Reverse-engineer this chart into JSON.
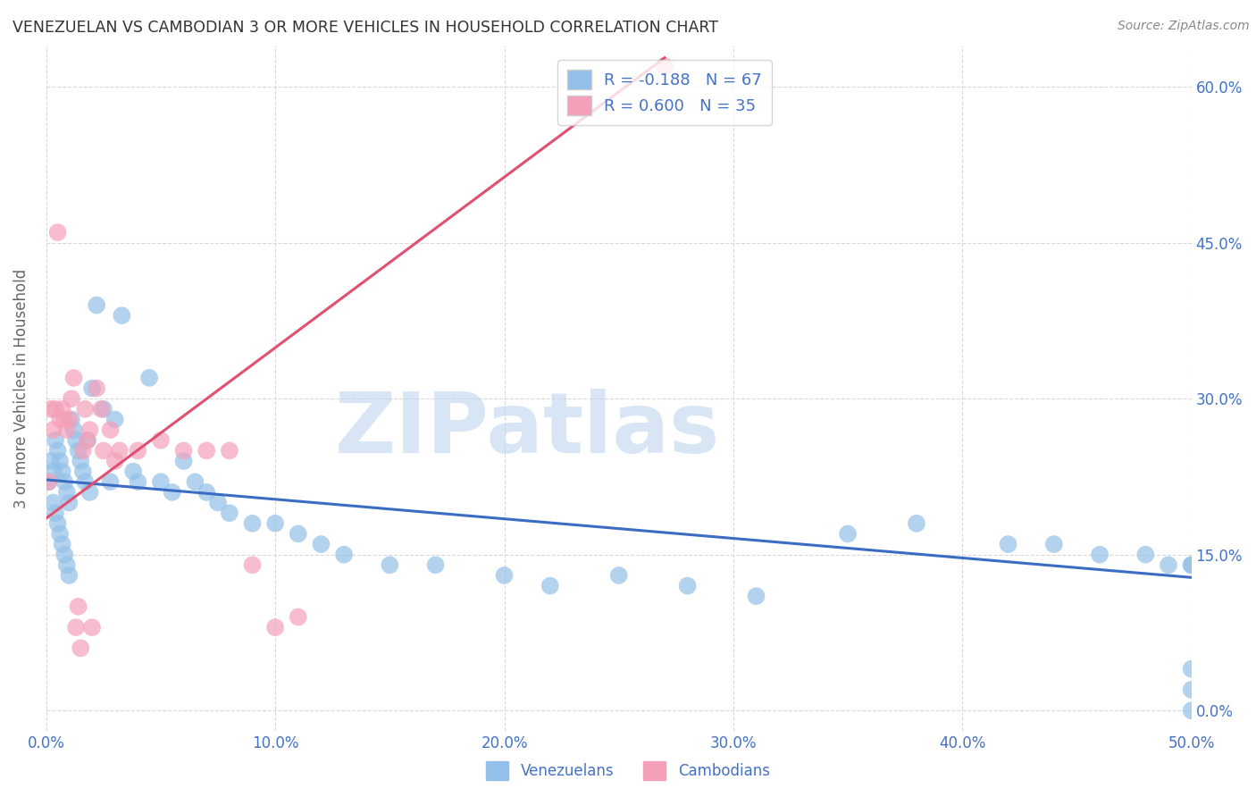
{
  "title": "VENEZUELAN VS CAMBODIAN 3 OR MORE VEHICLES IN HOUSEHOLD CORRELATION CHART",
  "source": "Source: ZipAtlas.com",
  "xmin": 0.0,
  "xmax": 0.5,
  "ymin": -0.02,
  "ymax": 0.64,
  "venezuelan_color": "#92C0E8",
  "cambodian_color": "#F4A0B8",
  "trendline_venezuelan_color": "#3B6CC4",
  "trendline_cambodian_color": "#E05070",
  "ylabel": "3 or more Vehicles in Household",
  "bottom_legend_venezuelan": "Venezuelans",
  "bottom_legend_cambodian": "Cambodians",
  "legend_ven_text": "R = -0.188   N = 67",
  "legend_cam_text": "R = 0.600   N = 35",
  "watermark": "ZIPatlas",
  "grid_color": "#D8D8D8",
  "background_color": "#FFFFFF",
  "title_color": "#333333",
  "axis_label_color": "#4472C4",
  "source_color": "#888888",
  "ven_trendline_x0": 0.0,
  "ven_trendline_x1": 0.5,
  "ven_trendline_y0": 0.222,
  "ven_trendline_y1": 0.128,
  "cam_trendline_x0": 0.0,
  "cam_trendline_x1": 0.27,
  "cam_trendline_y0": 0.185,
  "cam_trendline_y1": 0.628,
  "venezuelan_x": [
    0.001,
    0.002,
    0.003,
    0.003,
    0.004,
    0.004,
    0.005,
    0.005,
    0.006,
    0.006,
    0.007,
    0.007,
    0.008,
    0.008,
    0.009,
    0.009,
    0.01,
    0.01,
    0.011,
    0.012,
    0.013,
    0.014,
    0.015,
    0.016,
    0.017,
    0.018,
    0.019,
    0.02,
    0.022,
    0.025,
    0.028,
    0.03,
    0.033,
    0.038,
    0.04,
    0.045,
    0.05,
    0.055,
    0.06,
    0.065,
    0.07,
    0.075,
    0.08,
    0.09,
    0.1,
    0.11,
    0.12,
    0.13,
    0.15,
    0.17,
    0.2,
    0.22,
    0.25,
    0.28,
    0.31,
    0.35,
    0.38,
    0.42,
    0.44,
    0.46,
    0.48,
    0.49,
    0.5,
    0.5,
    0.5,
    0.5,
    0.5
  ],
  "venezuelan_y": [
    0.22,
    0.24,
    0.23,
    0.2,
    0.26,
    0.19,
    0.25,
    0.18,
    0.24,
    0.17,
    0.23,
    0.16,
    0.22,
    0.15,
    0.21,
    0.14,
    0.2,
    0.13,
    0.28,
    0.27,
    0.26,
    0.25,
    0.24,
    0.23,
    0.22,
    0.26,
    0.21,
    0.31,
    0.39,
    0.29,
    0.22,
    0.28,
    0.38,
    0.23,
    0.22,
    0.32,
    0.22,
    0.21,
    0.24,
    0.22,
    0.21,
    0.2,
    0.19,
    0.18,
    0.18,
    0.17,
    0.16,
    0.15,
    0.14,
    0.14,
    0.13,
    0.12,
    0.13,
    0.12,
    0.11,
    0.17,
    0.18,
    0.16,
    0.16,
    0.15,
    0.15,
    0.14,
    0.14,
    0.14,
    0.04,
    0.02,
    0.0
  ],
  "cambodian_x": [
    0.001,
    0.002,
    0.003,
    0.004,
    0.005,
    0.006,
    0.007,
    0.008,
    0.009,
    0.01,
    0.011,
    0.012,
    0.013,
    0.014,
    0.015,
    0.016,
    0.017,
    0.018,
    0.019,
    0.02,
    0.022,
    0.024,
    0.025,
    0.028,
    0.03,
    0.032,
    0.04,
    0.05,
    0.06,
    0.07,
    0.08,
    0.09,
    0.1,
    0.11,
    0.27
  ],
  "cambodian_y": [
    0.22,
    0.29,
    0.27,
    0.29,
    0.46,
    0.28,
    0.29,
    0.28,
    0.27,
    0.28,
    0.3,
    0.32,
    0.08,
    0.1,
    0.06,
    0.25,
    0.29,
    0.26,
    0.27,
    0.08,
    0.31,
    0.29,
    0.25,
    0.27,
    0.24,
    0.25,
    0.25,
    0.26,
    0.25,
    0.25,
    0.25,
    0.14,
    0.08,
    0.09,
    0.62
  ]
}
